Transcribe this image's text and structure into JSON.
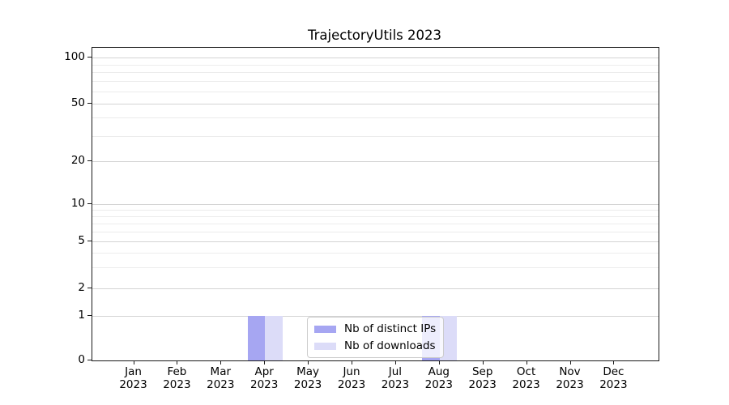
{
  "chart_data": {
    "type": "bar",
    "title": "TrajectoryUtils 2023",
    "categories": [
      "Jan 2023",
      "Feb 2023",
      "Mar 2023",
      "Apr 2023",
      "May 2023",
      "Jun 2023",
      "Jul 2023",
      "Aug 2023",
      "Sep 2023",
      "Oct 2023",
      "Nov 2023",
      "Dec 2023"
    ],
    "series": [
      {
        "name": "Nb of distinct IPs",
        "color": "#a6a6f2",
        "values": [
          0,
          0,
          0,
          1,
          0,
          0,
          0,
          1,
          0,
          0,
          0,
          0
        ]
      },
      {
        "name": "Nb of downloads",
        "color": "#dcdcf8",
        "values": [
          0,
          0,
          0,
          1,
          0,
          0,
          0,
          1,
          0,
          0,
          0,
          0
        ]
      }
    ],
    "xlabel": "",
    "ylabel": "",
    "yscale": "symlog",
    "y_ticks": [
      0,
      1,
      2,
      5,
      10,
      20,
      50,
      100
    ],
    "y_minor_ticks": [
      3,
      4,
      6,
      7,
      8,
      9,
      30,
      40,
      60,
      70,
      80,
      90
    ],
    "ylim": [
      0,
      120
    ],
    "grid": "horizontal major and minor",
    "legend_position": "lower center",
    "bar_layout": "grouped side-by-side"
  },
  "colors": {
    "distinct_ips": "#a6a6f2",
    "downloads": "#dcdcf8",
    "grid_major": "#d4d4d4",
    "grid_minor": "#ececec",
    "axis": "#1a1a1a",
    "background": "#ffffff"
  }
}
